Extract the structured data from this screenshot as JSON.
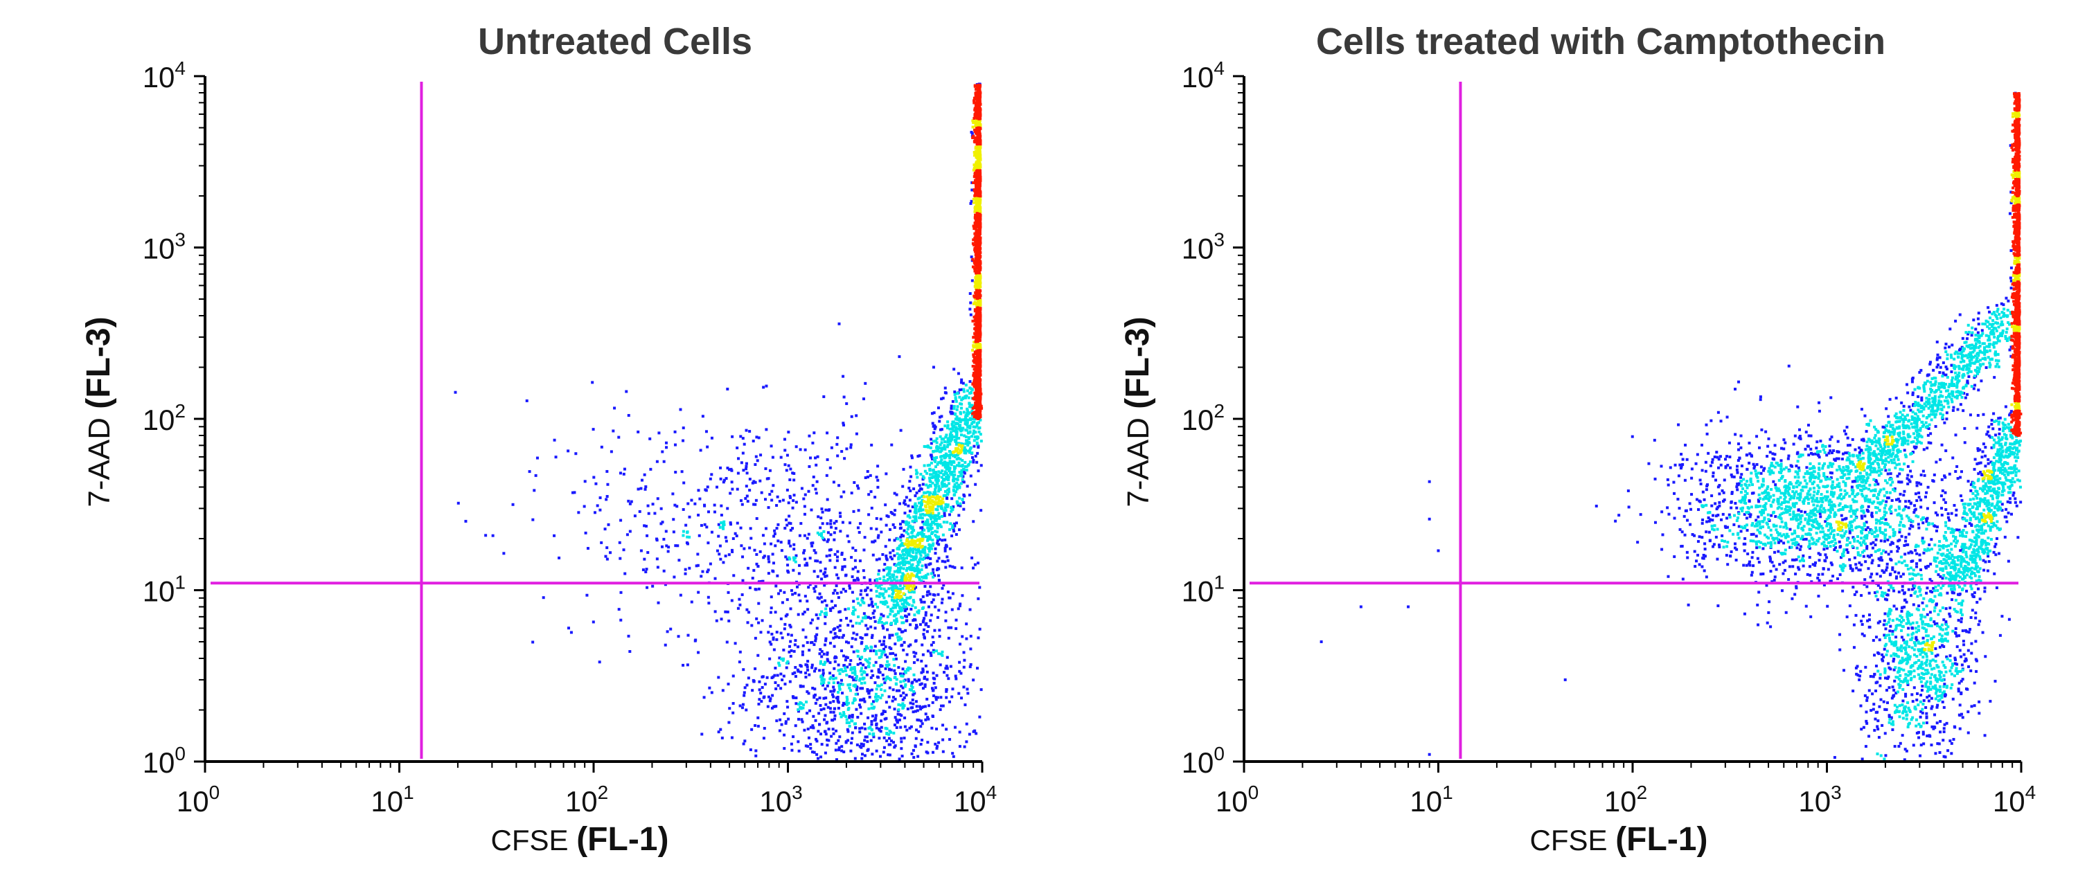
{
  "colors": {
    "gate": "#e020e0",
    "axis": "#000000",
    "density_low": "#1a1aff",
    "density_mid": "#00e6e6",
    "density_high_mid": "#f0f000",
    "density_high": "#ff1a00"
  },
  "chart_data": [
    {
      "type": "scatter",
      "title": "Untreated Cells",
      "xlabel": "CFSE (FL-1)",
      "xlabel_parts": [
        "CFSE",
        "(FL-1)"
      ],
      "ylabel": "7-AAD (FL-3)",
      "ylabel_parts": [
        "7-AAD",
        "(FL-3)"
      ],
      "xscale": "log",
      "yscale": "log",
      "xlim": [
        1,
        10000
      ],
      "ylim": [
        1,
        10000
      ],
      "x_ticks": [
        {
          "base": "10",
          "exp": "0"
        },
        {
          "base": "10",
          "exp": "1"
        },
        {
          "base": "10",
          "exp": "2"
        },
        {
          "base": "10",
          "exp": "3"
        },
        {
          "base": "10",
          "exp": "4"
        }
      ],
      "y_ticks": [
        {
          "base": "10",
          "exp": "0"
        },
        {
          "base": "10",
          "exp": "1"
        },
        {
          "base": "10",
          "exp": "2"
        },
        {
          "base": "10",
          "exp": "3"
        },
        {
          "base": "10",
          "exp": "4"
        }
      ],
      "quadrant_gate": {
        "x": 13,
        "y": 11
      },
      "populations": [
        {
          "description": "main cluster",
          "center": [
            2500,
            3
          ],
          "spread_log": [
            0.3,
            0.35
          ],
          "density": "high"
        },
        {
          "description": "diagonal tail",
          "from": [
            3500,
            8
          ],
          "to": [
            9500,
            150
          ],
          "density": "high"
        },
        {
          "description": "right-edge column",
          "x": 9800,
          "y_range": [
            100,
            9000
          ],
          "density": "very high"
        },
        {
          "description": "sparse scatter",
          "center": [
            800,
            25
          ],
          "spread_log": [
            0.5,
            0.35
          ],
          "density": "low"
        }
      ]
    },
    {
      "type": "scatter",
      "title": "Cells treated with Camptothecin",
      "xlabel": "CFSE (FL-1)",
      "xlabel_parts": [
        "CFSE",
        "(FL-1)"
      ],
      "ylabel": "7-AAD (FL-3)",
      "ylabel_parts": [
        "7-AAD",
        "(FL-3)"
      ],
      "xscale": "log",
      "yscale": "log",
      "xlim": [
        1,
        10000
      ],
      "ylim": [
        1,
        10000
      ],
      "x_ticks": [
        {
          "base": "10",
          "exp": "0"
        },
        {
          "base": "10",
          "exp": "1"
        },
        {
          "base": "10",
          "exp": "2"
        },
        {
          "base": "10",
          "exp": "3"
        },
        {
          "base": "10",
          "exp": "4"
        }
      ],
      "y_ticks": [
        {
          "base": "10",
          "exp": "0"
        },
        {
          "base": "10",
          "exp": "1"
        },
        {
          "base": "10",
          "exp": "2"
        },
        {
          "base": "10",
          "exp": "3"
        },
        {
          "base": "10",
          "exp": "4"
        }
      ],
      "quadrant_gate": {
        "x": 13,
        "y": 11
      },
      "populations": [
        {
          "description": "dead-cell cluster",
          "center": [
            900,
            30
          ],
          "spread_log": [
            0.35,
            0.22
          ],
          "density": "very high"
        },
        {
          "description": "upper diagonal band",
          "from": [
            1500,
            50
          ],
          "to": [
            9000,
            400
          ],
          "density": "medium"
        },
        {
          "description": "lower cluster",
          "center": [
            3000,
            4
          ],
          "spread_log": [
            0.15,
            0.3
          ],
          "density": "medium"
        },
        {
          "description": "lower diagonal tail",
          "from": [
            4500,
            10
          ],
          "to": [
            9800,
            100
          ],
          "density": "medium"
        },
        {
          "description": "right-edge column",
          "x": 9800,
          "y_range": [
            80,
            8000
          ],
          "density": "high"
        }
      ],
      "outliers": [
        [
          9,
          43
        ],
        [
          9,
          26
        ],
        [
          10,
          17
        ],
        [
          2.5,
          5
        ],
        [
          4,
          8
        ],
        [
          7,
          8
        ],
        [
          45,
          3
        ],
        [
          9,
          1.1
        ]
      ]
    }
  ]
}
